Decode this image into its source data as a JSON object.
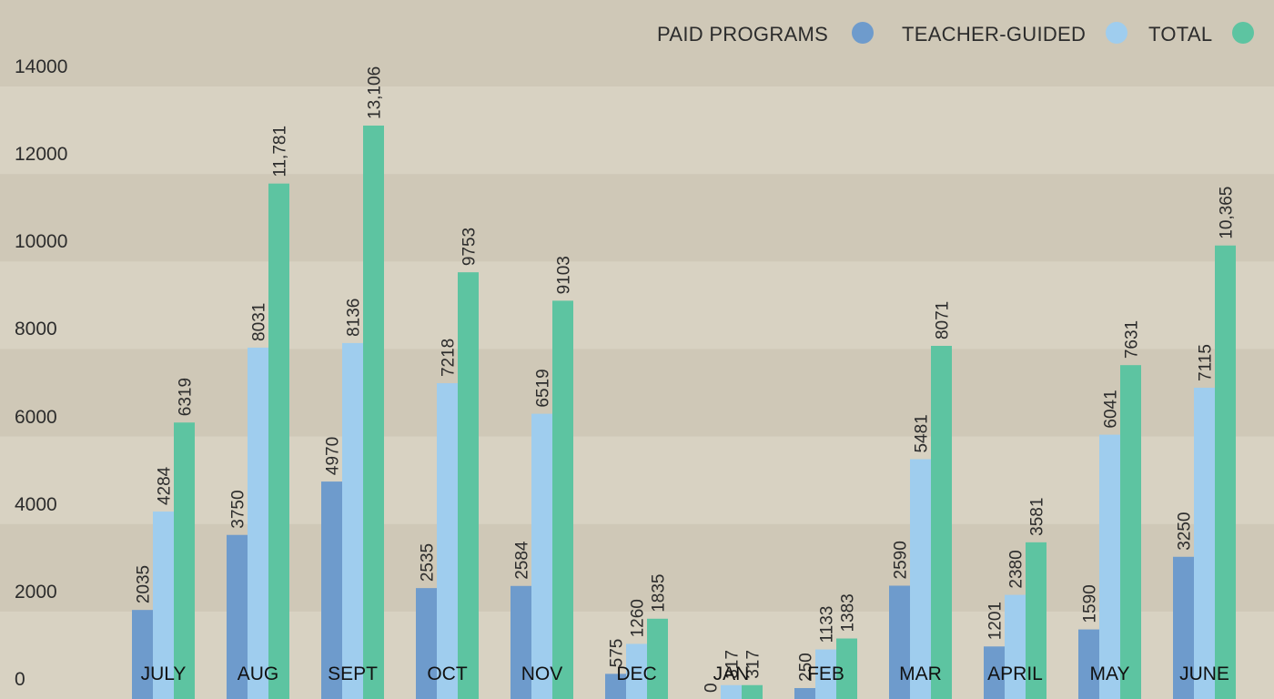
{
  "chart_data": {
    "type": "bar",
    "categories": [
      "JULY",
      "AUG",
      "SEPT",
      "OCT",
      "NOV",
      "DEC",
      "JAN",
      "FEB",
      "MAR",
      "APRIL",
      "MAY",
      "JUNE"
    ],
    "series": [
      {
        "name": "PAID PROGRAMS",
        "color": "#6e9bcc",
        "values": [
          2035,
          3750,
          4970,
          2535,
          2584,
          575,
          0,
          250,
          2590,
          1201,
          1590,
          3250
        ],
        "value_labels": [
          "2035",
          "3750",
          "4970",
          "2535",
          "2584",
          "575",
          "0",
          "250",
          "2590",
          "1201",
          "1590",
          "3250"
        ]
      },
      {
        "name": "TEACHER-GUIDED",
        "color": "#9fcdee",
        "values": [
          4284,
          8031,
          8136,
          7218,
          6519,
          1260,
          317,
          1133,
          5481,
          2380,
          6041,
          7115
        ],
        "value_labels": [
          "4284",
          "8031",
          "8136",
          "7218",
          "6519",
          "1260",
          "317",
          "1133",
          "5481",
          "2380",
          "6041",
          "7115"
        ]
      },
      {
        "name": "TOTAL",
        "color": "#5dc4a1",
        "values": [
          6319,
          11781,
          13106,
          9753,
          9103,
          1835,
          317,
          1383,
          8071,
          3581,
          7631,
          10365
        ],
        "value_labels": [
          "6319",
          "11,781",
          "13,106",
          "9753",
          "9103",
          "1835",
          "317",
          "1383",
          "8071",
          "3581",
          "7631",
          "10,365"
        ]
      }
    ],
    "y_ticks": [
      "0",
      "2000",
      "4000",
      "6000",
      "8000",
      "10000",
      "12000",
      "14000"
    ],
    "ylim": [
      0,
      14000
    ],
    "title": "",
    "xlabel": "",
    "ylabel": "",
    "grid": true,
    "legend_position": "top-right",
    "band_colors": [
      "#d8d2c2",
      "#cfc8b7"
    ]
  }
}
